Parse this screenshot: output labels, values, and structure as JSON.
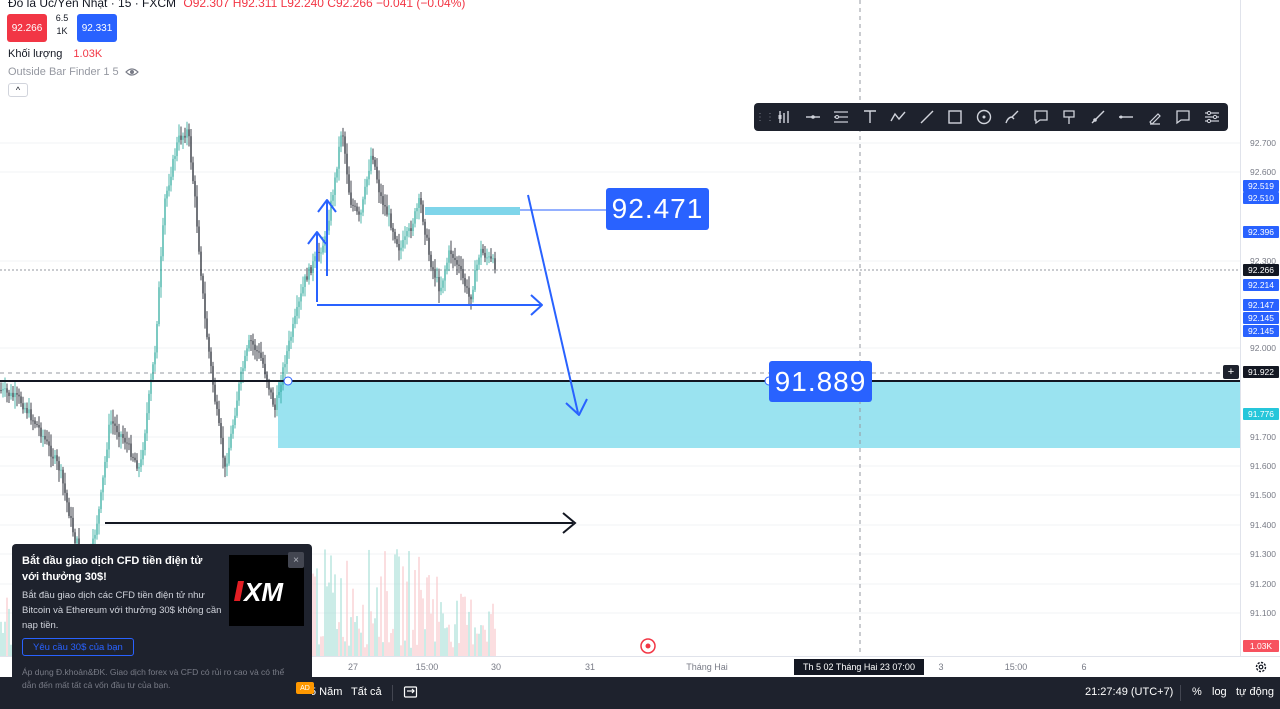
{
  "legend": {
    "title": "Đô la Úc/Yên Nhật · 15 · FXCM",
    "ohlc": "O92.307 H92.311 L92.240 C92.266 −0.041 (−0.04%)",
    "sell_price": "92.266",
    "spread_value": "6.5",
    "spread_size": "1K",
    "buy_price": "92.331",
    "volume_label": "Khối lượng",
    "volume_value": "1.03K",
    "indicator": "Outside Bar Finder 1 5",
    "collapse": "^"
  },
  "toolbar": {
    "grip": "⋮⋮",
    "tools": [
      {
        "name": "templates-icon"
      },
      {
        "name": "horizontal-ray-icon"
      },
      {
        "name": "fib-retracement-icon"
      },
      {
        "name": "text-tool-icon"
      },
      {
        "name": "path-icon"
      },
      {
        "name": "trend-line-icon"
      },
      {
        "name": "rectangle-icon"
      },
      {
        "name": "circle-tool-icon"
      },
      {
        "name": "brush-icon"
      },
      {
        "name": "callout-icon"
      },
      {
        "name": "flag-icon"
      },
      {
        "name": "ray-icon"
      },
      {
        "name": "horizontal-line-icon"
      },
      {
        "name": "highlighter-icon"
      },
      {
        "name": "comment-icon"
      },
      {
        "name": "settings-sliders-icon"
      }
    ]
  },
  "price_axis": {
    "ticks": [
      "92.700",
      "92.600",
      "92.300",
      "92.000",
      "91.700",
      "91.600",
      "91.500",
      "91.400",
      "91.300",
      "91.200",
      "91.100"
    ],
    "tags": [
      {
        "text": "92.519",
        "color": "#2962ff"
      },
      {
        "text": "92.510",
        "color": "#2962ff"
      },
      {
        "text": "92.396",
        "color": "#2962ff"
      },
      {
        "text": "92.266",
        "color": "#131722"
      },
      {
        "text": "92.214",
        "color": "#2962ff"
      },
      {
        "text": "92.147",
        "color": "#2962ff"
      },
      {
        "text": "92.145",
        "color": "#2962ff"
      },
      {
        "text": "92.145",
        "color": "#2962ff"
      },
      {
        "text": "91.922",
        "color": "#131722"
      },
      {
        "text": "91.776",
        "color": "#26c6da"
      },
      {
        "text": "1.03K",
        "color": "#f7525f"
      }
    ]
  },
  "callouts": {
    "upper": "92.471",
    "lower": "91.889"
  },
  "time_axis": {
    "ticks": [
      "27",
      "15:00",
      "30",
      "31",
      "Tháng Hai",
      "3",
      "15:00",
      "6"
    ],
    "crosshair": "Th 5 02 Tháng Hai 23   07:00"
  },
  "bottom_bar": {
    "range_5y": "5 Năm",
    "range_all": "Tất cả",
    "clock": "21:27:49 (UTC+7)",
    "percent": "%",
    "log": "log",
    "auto": "tự động"
  },
  "ad": {
    "title": "Bắt đầu giao dịch CFD tiền điện tử với thưởng 30$!",
    "body": "Bắt đầu giao dịch các CFD tiền điện tử như Bitcoin và Ethereum với thưởng 30$ không cần nạp tiền.",
    "cta": "Yêu cầu 30$ của bạn",
    "logo": "XM",
    "close": "×",
    "disclaimer": "Áp dụng Đ.khoản&ĐK. Giao dịch forex và CFD có rủi ro cao và có thể dẫn đến mất tất cả vốn đầu tư của bạn.",
    "badge": "AD"
  },
  "colors": {
    "up": "#26a69a",
    "down": "#131722",
    "zone": "#7fdcec",
    "drawing": "#2962ff"
  }
}
